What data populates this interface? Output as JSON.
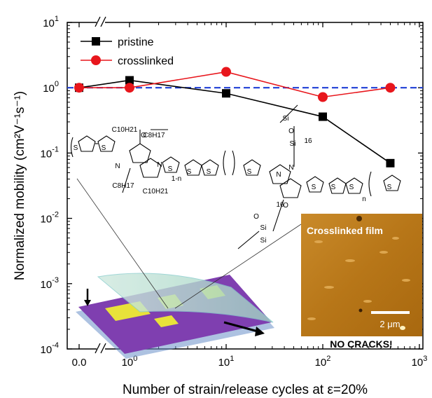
{
  "chart_data": {
    "type": "line",
    "xlabel": "Number of strain/release cycles at ε=20%",
    "ylabel": "Normalized mobility (cm²V⁻¹s⁻¹)",
    "x_scale": "log with axis break (0.0 then 10^0…10^3)",
    "y_scale": "log",
    "ylim_exp": [
      -4,
      1
    ],
    "x_ticks": [
      {
        "base": "0.0",
        "exp": ""
      },
      {
        "base": "10",
        "exp": "0"
      },
      {
        "base": "10",
        "exp": "1"
      },
      {
        "base": "10",
        "exp": "2"
      },
      {
        "base": "10",
        "exp": "3"
      }
    ],
    "y_ticks": [
      {
        "base": "10",
        "exp": "1"
      },
      {
        "base": "10",
        "exp": "0"
      },
      {
        "base": "10",
        "exp": "-1"
      },
      {
        "base": "10",
        "exp": "-2"
      },
      {
        "base": "10",
        "exp": "-3"
      },
      {
        "base": "10",
        "exp": "-4"
      }
    ],
    "reference_line": {
      "y": 1.0,
      "style": "dashed",
      "color": "#1f3fd6"
    },
    "legend_position": "top-left",
    "series": [
      {
        "name": "pristine",
        "color": "#000000",
        "marker": "square",
        "x": [
          0,
          1,
          10,
          100,
          500
        ],
        "y": [
          1.0,
          1.3,
          0.82,
          0.36,
          0.07
        ]
      },
      {
        "name": "crosslinked",
        "color": "#e8161c",
        "marker": "circle",
        "x": [
          0,
          1,
          10,
          100,
          500
        ],
        "y": [
          1.0,
          1.0,
          1.75,
          0.72,
          1.0
        ]
      }
    ]
  },
  "inset": {
    "molecule_labels": [
      "C10H21",
      "C8H17",
      "C8H17",
      "C10H21",
      "1-n",
      "n",
      "16",
      "16",
      "Si",
      "O",
      "Si",
      "Si",
      "O",
      "Si",
      "O",
      "O",
      "N",
      "N",
      "N",
      "N",
      "S",
      "S",
      "S",
      "S",
      "S",
      "S",
      "S",
      "S",
      "S",
      "S"
    ],
    "afm_title": "Crosslinked film",
    "afm_scalebar": "2 μm",
    "afm_caption": "NO CRACKS!"
  }
}
